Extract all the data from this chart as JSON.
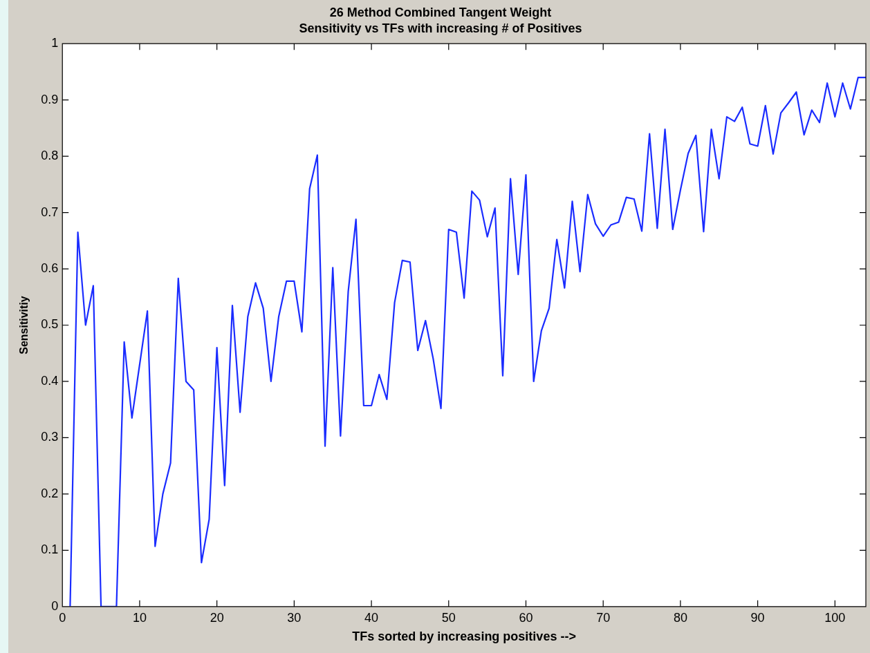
{
  "chart_data": {
    "type": "line",
    "title": "26 Method Combined Tangent Weight",
    "subtitle": "Sensitivity vs TFs with increasing # of Positives",
    "xlabel": "TFs sorted by increasing positives -->",
    "ylabel": "Sensitivitiy",
    "x": [
      1,
      2,
      3,
      4,
      5,
      6,
      7,
      8,
      9,
      10,
      11,
      12,
      13,
      14,
      15,
      16,
      17,
      18,
      19,
      20,
      21,
      22,
      23,
      24,
      25,
      26,
      27,
      28,
      29,
      30,
      31,
      32,
      33,
      34,
      35,
      36,
      37,
      38,
      39,
      40,
      41,
      42,
      43,
      44,
      45,
      46,
      47,
      48,
      49,
      50,
      51,
      52,
      53,
      54,
      55,
      56,
      57,
      58,
      59,
      60,
      61,
      62,
      63,
      64,
      65,
      66,
      67,
      68,
      69,
      70,
      71,
      72,
      73,
      74,
      75,
      76,
      77,
      78,
      79,
      80,
      81,
      82,
      83,
      84,
      85,
      86,
      87,
      88,
      89,
      90,
      91,
      92,
      93,
      94,
      95,
      96,
      97,
      98,
      99,
      100,
      101,
      102,
      103,
      104
    ],
    "series": [
      {
        "color": "#1a2cff",
        "values": [
          0,
          0.665,
          0.5,
          0.57,
          0,
          0,
          0,
          0.47,
          0.335,
          0.43,
          0.525,
          0.107,
          0.2,
          0.255,
          0.583,
          0.4,
          0.385,
          0.078,
          0.155,
          0.46,
          0.215,
          0.535,
          0.345,
          0.515,
          0.575,
          0.53,
          0.4,
          0.515,
          0.578,
          0.578,
          0.488,
          0.742,
          0.802,
          0.285,
          0.602,
          0.303,
          0.56,
          0.688,
          0.357,
          0.357,
          0.412,
          0.368,
          0.54,
          0.615,
          0.612,
          0.455,
          0.508,
          0.44,
          0.352,
          0.67,
          0.665,
          0.548,
          0.738,
          0.722,
          0.657,
          0.708,
          0.41,
          0.76,
          0.59,
          0.767,
          0.4,
          0.49,
          0.53,
          0.652,
          0.566,
          0.72,
          0.595,
          0.732,
          0.68,
          0.658,
          0.678,
          0.683,
          0.727,
          0.724,
          0.667,
          0.84,
          0.672,
          0.848,
          0.67,
          0.74,
          0.805,
          0.837,
          0.666,
          0.848,
          0.76,
          0.87,
          0.862,
          0.887,
          0.822,
          0.818,
          0.89,
          0.804,
          0.877,
          0.895,
          0.914,
          0.838,
          0.882,
          0.86,
          0.93,
          0.87,
          0.93,
          0.884,
          0.94,
          0.94
        ]
      }
    ],
    "xlim": [
      0,
      104
    ],
    "xticks": [
      0,
      10,
      20,
      30,
      40,
      50,
      60,
      70,
      80,
      90,
      100
    ],
    "ylim": [
      0,
      1
    ],
    "yticks": [
      0,
      0.1,
      0.2,
      0.3,
      0.4,
      0.5,
      0.6,
      0.7,
      0.8,
      0.9,
      1
    ],
    "grid": false,
    "legend": false,
    "marker": "none",
    "line_style": "solid"
  }
}
